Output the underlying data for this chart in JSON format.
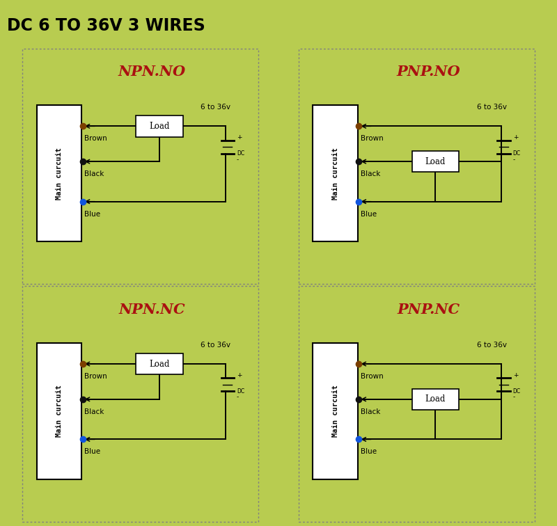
{
  "title": "DC 6 TO 36V 3 WIRES",
  "title_bg": "#a8c832",
  "title_color": "#000000",
  "panel_bg": "#ffffff",
  "outer_bg": "#b8cc50",
  "label_color": "#aa1111",
  "subtitle": "6 to 36v",
  "quadrants": [
    {
      "label": "NPN.NO",
      "load_on_brown": true
    },
    {
      "label": "PNP.NO",
      "load_on_brown": false
    },
    {
      "label": "NPN.NC",
      "load_on_brown": true
    },
    {
      "label": "PNP.NC",
      "load_on_brown": false
    }
  ],
  "brown_color": "#7B3F00",
  "black_color": "#111111",
  "blue_color": "#1155dd",
  "wire_lw": 1.4,
  "dot_size": 6
}
